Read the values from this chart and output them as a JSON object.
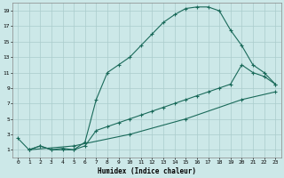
{
  "title": "",
  "xlabel": "Humidex (Indice chaleur)",
  "bg_color": "#cce8e8",
  "grid_color": "#aacccc",
  "line_color": "#1a6a5a",
  "xlim": [
    -0.5,
    23.5
  ],
  "ylim": [
    0,
    20
  ],
  "xticks": [
    0,
    1,
    2,
    3,
    4,
    5,
    6,
    7,
    8,
    9,
    10,
    11,
    12,
    13,
    14,
    15,
    16,
    17,
    18,
    19,
    20,
    21,
    22,
    23
  ],
  "yticks": [
    1,
    3,
    5,
    7,
    9,
    11,
    13,
    15,
    17,
    19
  ],
  "line1_x": [
    1,
    2,
    3,
    4,
    5,
    6,
    7,
    8,
    9,
    10,
    11,
    12,
    13,
    14,
    15,
    16,
    17,
    18,
    19,
    20,
    21,
    22,
    23
  ],
  "line1_y": [
    1,
    1.5,
    1,
    1,
    1,
    2,
    7.5,
    11,
    12,
    13,
    14.5,
    16,
    17.5,
    18.5,
    19.3,
    19.5,
    19.5,
    19,
    16.5,
    14.5,
    12,
    11,
    9.5
  ],
  "line2_x": [
    0,
    1,
    2,
    3,
    4,
    5,
    6,
    7,
    8,
    9,
    10,
    11,
    12,
    13,
    14,
    15,
    16,
    17,
    18,
    19,
    20,
    21,
    22,
    23
  ],
  "line2_y": [
    2.5,
    1,
    1.5,
    1,
    1.2,
    1,
    1.5,
    3.5,
    4,
    4.5,
    5,
    5.5,
    6,
    6.5,
    7,
    7.5,
    8,
    8.5,
    9,
    9.5,
    12,
    11,
    10.5,
    9.5
  ],
  "line3_x": [
    1,
    5,
    10,
    15,
    20,
    23
  ],
  "line3_y": [
    1,
    1.5,
    3,
    5,
    7.5,
    8.5
  ]
}
